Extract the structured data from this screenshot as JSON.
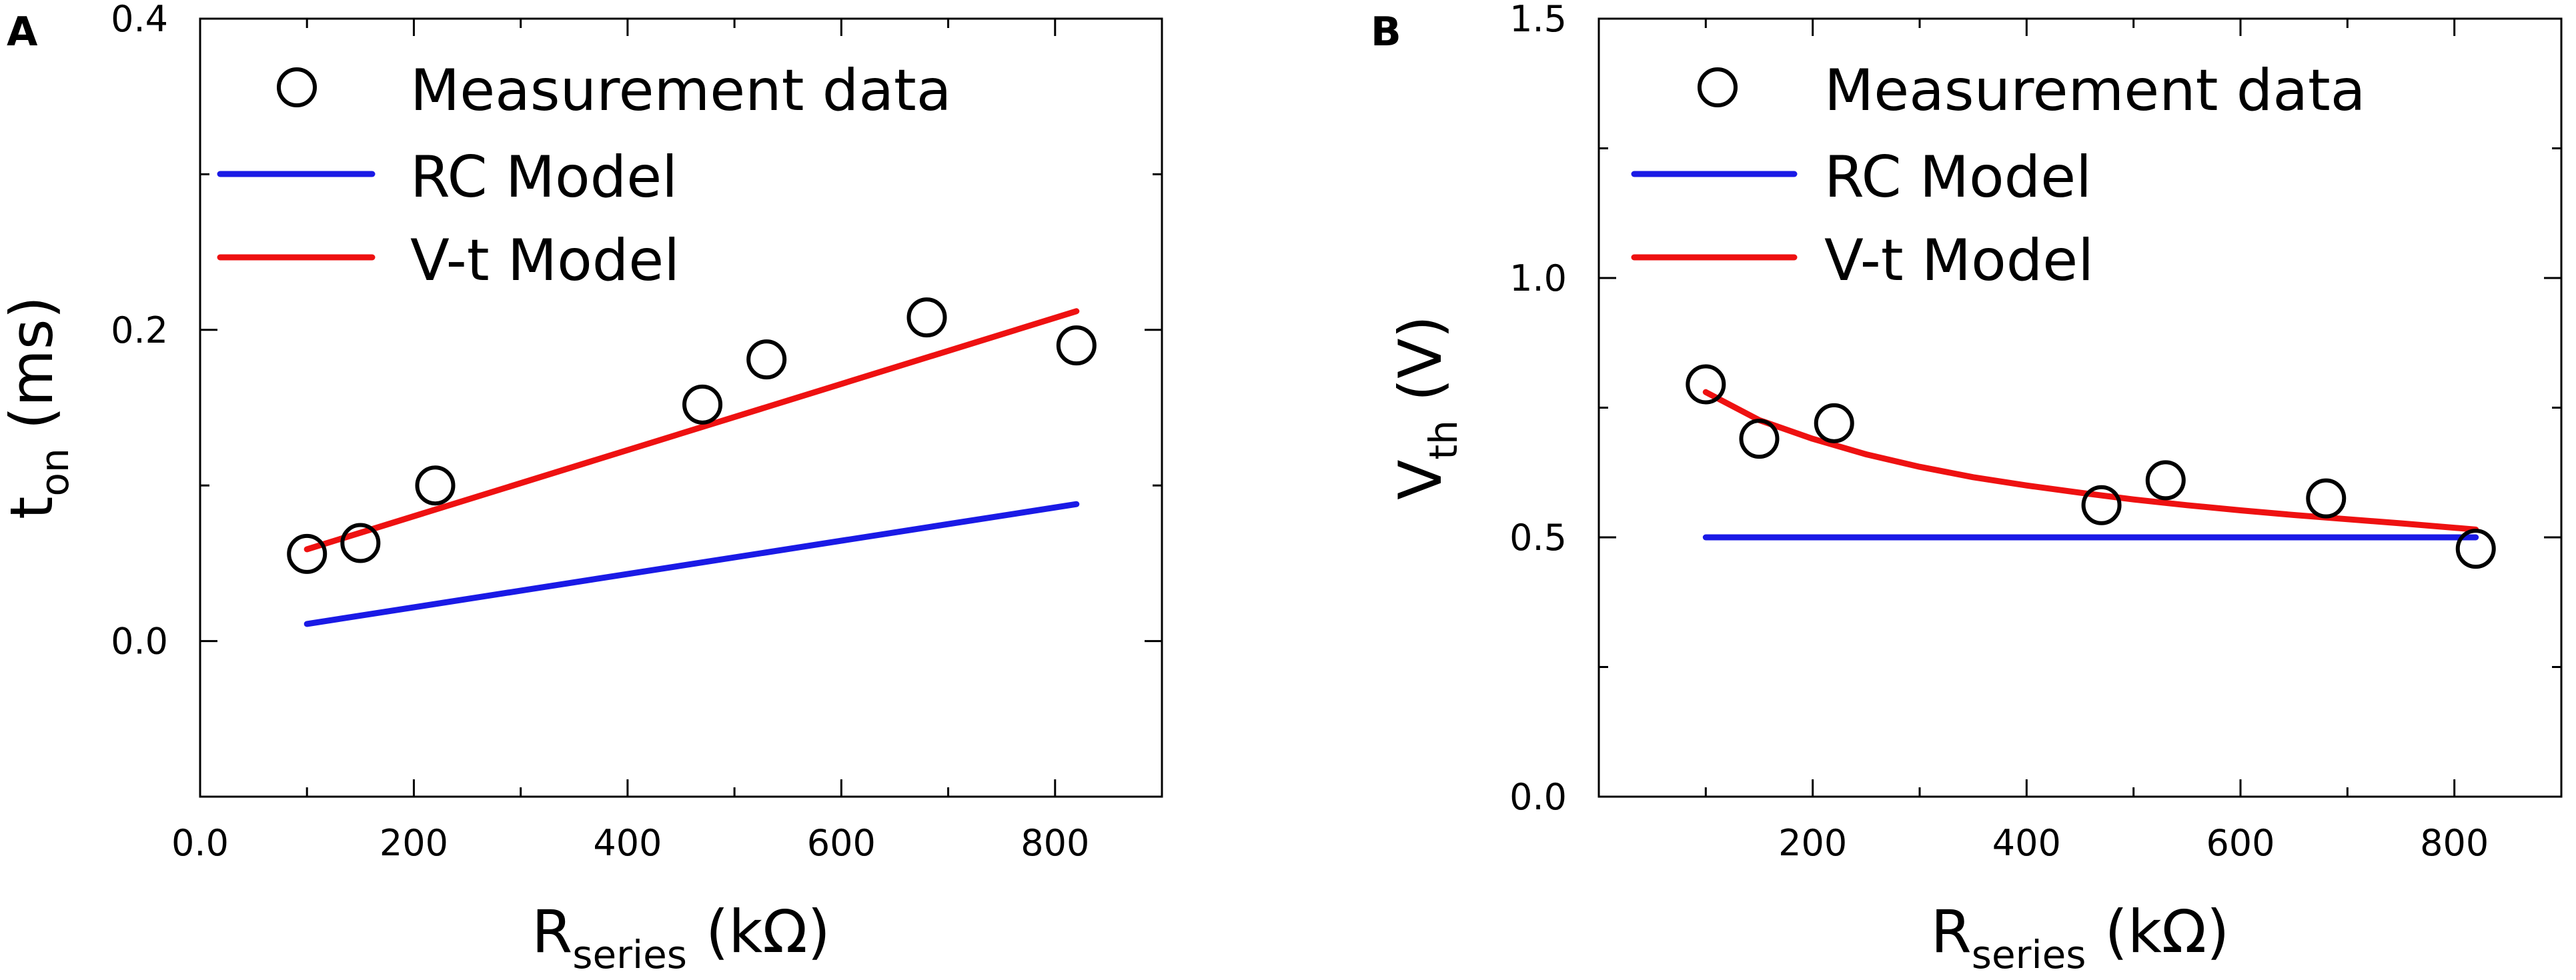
{
  "chart_data": [
    {
      "type": "scatter",
      "panel": "A",
      "xlabel": {
        "main": "R",
        "sub": "series",
        "unit": " (kΩ)"
      },
      "ylabel": {
        "main": "t",
        "sub": "on",
        "unit": " (ms)"
      },
      "xlim": [
        0,
        900
      ],
      "ylim": [
        -0.1,
        0.4
      ],
      "xticks": [
        {
          "value": 0,
          "label": "0.0"
        },
        {
          "value": 200,
          "label": "200"
        },
        {
          "value": 400,
          "label": "400"
        },
        {
          "value": 600,
          "label": "600"
        },
        {
          "value": 800,
          "label": "800"
        }
      ],
      "xminor": [
        100,
        300,
        500,
        700
      ],
      "yticks": [
        {
          "value": 0.0,
          "label": "0.0"
        },
        {
          "value": 0.2,
          "label": "0.2"
        },
        {
          "value": 0.4,
          "label": "0.4"
        }
      ],
      "yminor": [
        -0.1,
        0.1,
        0.3
      ],
      "grid": false,
      "legend_position": "top-left",
      "legend": [
        "Measurement data",
        "RC Model",
        "V-t Model"
      ],
      "series": [
        {
          "name": "Measurement data",
          "kind": "markers",
          "color": "#000000",
          "x": [
            100,
            150,
            220,
            470,
            530,
            680,
            820
          ],
          "y": [
            0.056,
            0.063,
            0.1,
            0.152,
            0.181,
            0.208,
            0.19
          ]
        },
        {
          "name": "RC Model",
          "kind": "line",
          "color": "#1a1ae6",
          "x": [
            100,
            820
          ],
          "y": [
            0.011,
            0.088
          ]
        },
        {
          "name": "V-t Model",
          "kind": "line",
          "color": "#ee1111",
          "x": [
            100,
            820
          ],
          "y": [
            0.059,
            0.212
          ]
        }
      ]
    },
    {
      "type": "scatter",
      "panel": "B",
      "xlabel": {
        "main": "R",
        "sub": "series",
        "unit": " (kΩ)"
      },
      "ylabel": {
        "main": "V",
        "sub": "th",
        "unit": " (V)"
      },
      "xlim": [
        0,
        900
      ],
      "ylim": [
        0.0,
        1.5
      ],
      "xticks": [
        {
          "value": 200,
          "label": "200"
        },
        {
          "value": 400,
          "label": "400"
        },
        {
          "value": 600,
          "label": "600"
        },
        {
          "value": 800,
          "label": "800"
        }
      ],
      "xminor": [
        100,
        300,
        500,
        700
      ],
      "yticks": [
        {
          "value": 0.0,
          "label": "0.0"
        },
        {
          "value": 0.5,
          "label": "0.5"
        },
        {
          "value": 1.0,
          "label": "1.0"
        },
        {
          "value": 1.5,
          "label": "1.5"
        }
      ],
      "yminor": [
        0.25,
        0.75,
        1.25
      ],
      "grid": false,
      "legend_position": "top-left",
      "legend": [
        "Measurement data",
        "RC Model",
        "V-t Model"
      ],
      "series": [
        {
          "name": "Measurement data",
          "kind": "markers",
          "color": "#000000",
          "x": [
            100,
            150,
            220,
            470,
            530,
            680,
            820
          ],
          "y": [
            0.795,
            0.69,
            0.72,
            0.562,
            0.61,
            0.575,
            0.478
          ]
        },
        {
          "name": "RC Model",
          "kind": "line",
          "color": "#1a1ae6",
          "x": [
            100,
            820
          ],
          "y": [
            0.5,
            0.5
          ]
        },
        {
          "name": "V-t Model",
          "kind": "line",
          "color": "#ee1111",
          "x": [
            100,
            150,
            200,
            250,
            300,
            350,
            400,
            450,
            500,
            550,
            600,
            650,
            700,
            750,
            820
          ],
          "y": [
            0.78,
            0.726,
            0.69,
            0.66,
            0.636,
            0.616,
            0.6,
            0.586,
            0.573,
            0.562,
            0.552,
            0.543,
            0.535,
            0.527,
            0.515
          ]
        }
      ]
    }
  ]
}
